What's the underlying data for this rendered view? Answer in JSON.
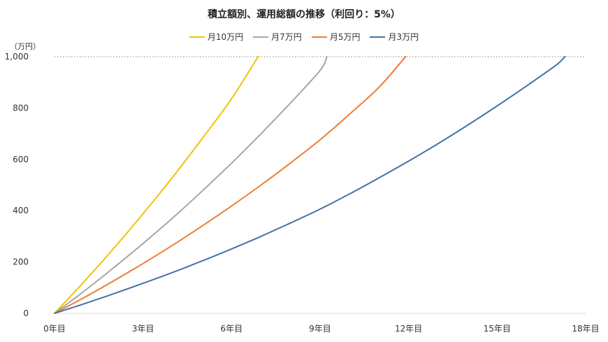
{
  "chart_data": {
    "type": "line",
    "title": "積立額別、運用総額の推移（利回り：5%）",
    "y_unit_label": "（万円）",
    "xlabel": "",
    "ylabel": "",
    "xlim": [
      0,
      18
    ],
    "ylim": [
      0,
      1000
    ],
    "x_ticks": [
      0,
      3,
      6,
      9,
      12,
      15,
      18
    ],
    "x_tick_labels": [
      "0年目",
      "3年目",
      "6年目",
      "9年目",
      "12年目",
      "15年目",
      "18年目"
    ],
    "y_ticks": [
      0,
      200,
      400,
      600,
      800,
      1000
    ],
    "y_tick_labels": [
      "0",
      "200",
      "400",
      "600",
      "800",
      "1,000"
    ],
    "reference_line": {
      "y": 1000,
      "style": "dotted"
    },
    "legend_position": "top-center",
    "series": [
      {
        "name": "月10万円",
        "color": "#f2c200",
        "points": [
          [
            0,
            0
          ],
          [
            1,
            123
          ],
          [
            2,
            252
          ],
          [
            3,
            388
          ],
          [
            4,
            530
          ],
          [
            5,
            680
          ],
          [
            6,
            836
          ],
          [
            6.9,
            1000
          ]
        ]
      },
      {
        "name": "月7万円",
        "color": "#a6a6a6",
        "points": [
          [
            0,
            0
          ],
          [
            1,
            86
          ],
          [
            2,
            177
          ],
          [
            3,
            272
          ],
          [
            4,
            371
          ],
          [
            5,
            476
          ],
          [
            6,
            585
          ],
          [
            7,
            700
          ],
          [
            8,
            820
          ],
          [
            9,
            946
          ],
          [
            9.23,
            1000
          ]
        ]
      },
      {
        "name": "月5万円",
        "color": "#ed7d31",
        "points": [
          [
            0,
            0
          ],
          [
            1,
            61
          ],
          [
            2,
            126
          ],
          [
            3,
            194
          ],
          [
            4,
            265
          ],
          [
            5,
            340
          ],
          [
            6,
            418
          ],
          [
            7,
            500
          ],
          [
            8,
            586
          ],
          [
            9,
            676
          ],
          [
            10,
            776
          ],
          [
            11,
            881
          ],
          [
            11.9,
            1000
          ]
        ]
      },
      {
        "name": "月3万円",
        "color": "#4472a8",
        "points": [
          [
            0,
            0
          ],
          [
            1,
            37
          ],
          [
            2,
            76
          ],
          [
            3,
            117
          ],
          [
            4,
            159
          ],
          [
            5,
            204
          ],
          [
            6,
            251
          ],
          [
            7,
            300
          ],
          [
            8,
            352
          ],
          [
            9,
            406
          ],
          [
            10,
            465
          ],
          [
            11,
            528
          ],
          [
            12,
            593
          ],
          [
            13,
            661
          ],
          [
            14,
            733
          ],
          [
            15,
            808
          ],
          [
            16,
            886
          ],
          [
            17,
            967
          ],
          [
            17.3,
            1000
          ]
        ]
      }
    ]
  }
}
